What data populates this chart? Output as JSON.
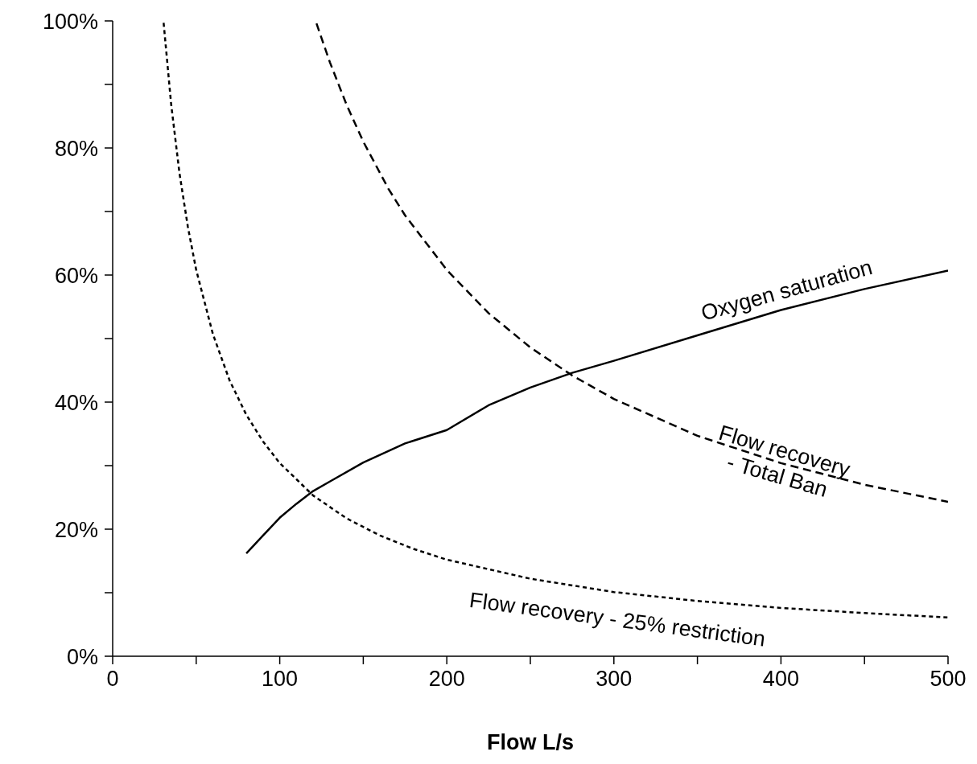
{
  "chart_data": {
    "type": "line",
    "xlabel": "Flow L/s",
    "xlim": [
      0,
      500
    ],
    "xticks": [
      0,
      {
        "value": 50,
        "label": null
      },
      100,
      {
        "value": 150,
        "label": null
      },
      200,
      {
        "value": 250,
        "label": null
      },
      300,
      {
        "value": 350,
        "label": null
      },
      400,
      {
        "value": 450,
        "label": null
      },
      500
    ],
    "ylim": [
      0,
      100
    ],
    "yticks": [
      {
        "value": 0,
        "label": "0%"
      },
      {
        "value": 10,
        "label": null
      },
      {
        "value": 20,
        "label": "20%"
      },
      {
        "value": 30,
        "label": null
      },
      {
        "value": 40,
        "label": "40%"
      },
      {
        "value": 50,
        "label": null
      },
      {
        "value": 60,
        "label": "60%"
      },
      {
        "value": 70,
        "label": null
      },
      {
        "value": 80,
        "label": "80%"
      },
      {
        "value": 90,
        "label": null
      },
      {
        "value": 100,
        "label": "100%"
      }
    ],
    "grid": false,
    "legend": false,
    "marker": "none",
    "series": [
      {
        "name": "Oxygen saturation",
        "color": "#000000",
        "line_style": "solid",
        "x": [
          80,
          90,
          100,
          110,
          120,
          130,
          150,
          175,
          200,
          225,
          250,
          275,
          300,
          350,
          400,
          450,
          500
        ],
        "values": [
          16.2,
          19,
          21.8,
          24,
          26,
          27.5,
          30.5,
          33.5,
          35.6,
          39.5,
          42.3,
          44.6,
          46.5,
          50.5,
          54.5,
          57.8,
          60.7
        ]
      },
      {
        "name": "Flow recovery - Total Ban",
        "color": "#000000",
        "line_style": "dashed",
        "x": [
          122,
          130,
          140,
          150,
          165,
          175,
          200,
          225,
          250,
          275,
          300,
          350,
          400,
          450,
          500
        ],
        "values": [
          99.6,
          93.5,
          86.8,
          81,
          73.6,
          69.4,
          60.8,
          54,
          48.6,
          44.2,
          40.5,
          34.7,
          30.4,
          27,
          24.3
        ]
      },
      {
        "name": "Flow recovery - 25% restriction",
        "color": "#000000",
        "line_style": "dotted",
        "x": [
          30.5,
          35,
          40,
          45,
          50,
          60,
          70,
          80,
          90,
          100,
          120,
          140,
          160,
          180,
          200,
          250,
          300,
          350,
          400,
          450,
          500
        ],
        "values": [
          99.7,
          86.9,
          76,
          67.6,
          60.8,
          50.7,
          43.4,
          38,
          33.8,
          30.4,
          25.3,
          21.7,
          19,
          16.9,
          15.2,
          12.2,
          10.1,
          8.7,
          7.6,
          6.8,
          6.1
        ]
      }
    ]
  }
}
